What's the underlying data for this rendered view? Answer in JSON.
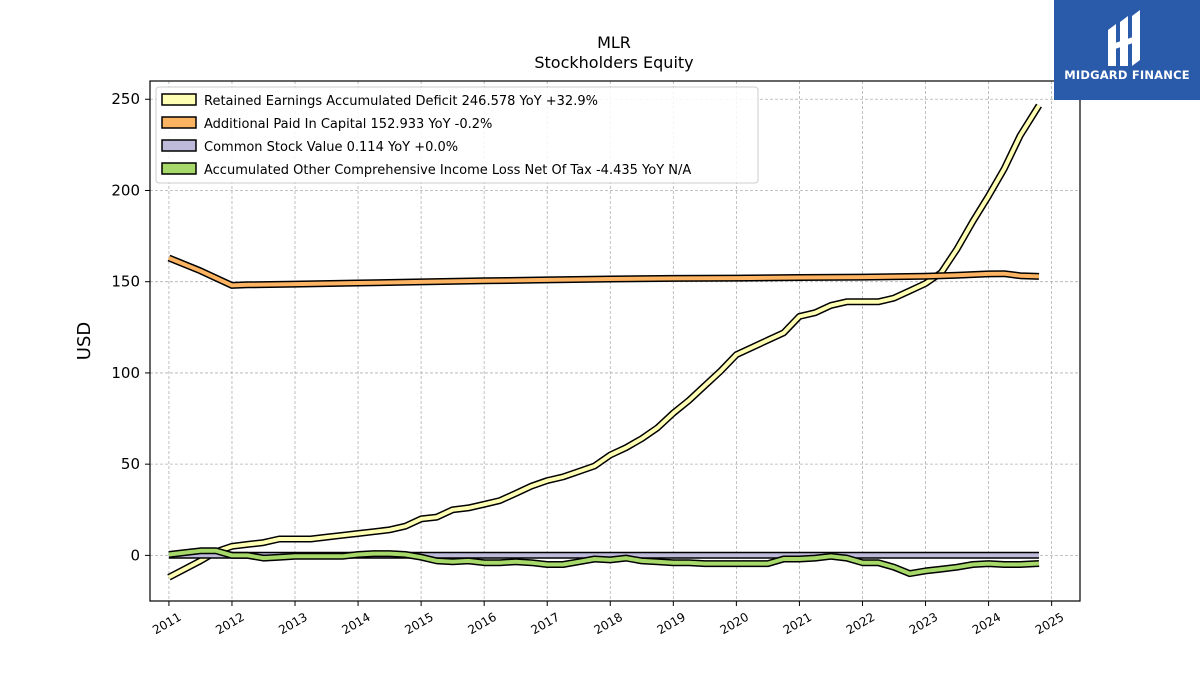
{
  "chart_data": {
    "type": "line",
    "title": "MLR",
    "subtitle": "Stockholders  Equity",
    "ylabel": "USD",
    "xlabel": "",
    "ylim": [
      -25,
      260
    ],
    "xlim": [
      2010.7,
      2025.45
    ],
    "yticks": [
      0,
      50,
      100,
      150,
      200,
      250
    ],
    "xticks": [
      2011,
      2012,
      2013,
      2014,
      2015,
      2016,
      2017,
      2018,
      2019,
      2020,
      2021,
      2022,
      2023,
      2024,
      2025
    ],
    "grid": true,
    "legend_position": "top-left",
    "series": [
      {
        "name": "Retained Earnings Accumulated Deficit",
        "legend": "Retained Earnings Accumulated Deficit  246.578 YoY +32.9%",
        "color": "#ffffb3",
        "x": [
          2011.0,
          2011.5,
          2011.75,
          2012.0,
          2012.25,
          2012.5,
          2012.75,
          2013.0,
          2013.25,
          2013.5,
          2013.75,
          2014.0,
          2014.25,
          2014.5,
          2014.75,
          2015.0,
          2015.25,
          2015.5,
          2015.75,
          2016.0,
          2016.25,
          2016.5,
          2016.75,
          2017.0,
          2017.25,
          2017.5,
          2017.75,
          2018.0,
          2018.25,
          2018.5,
          2018.75,
          2019.0,
          2019.25,
          2019.5,
          2019.75,
          2020.0,
          2020.25,
          2020.5,
          2020.75,
          2021.0,
          2021.25,
          2021.5,
          2021.75,
          2022.0,
          2022.25,
          2022.5,
          2022.75,
          2023.0,
          2023.25,
          2023.5,
          2023.75,
          2024.0,
          2024.25,
          2024.5,
          2024.8
        ],
        "y": [
          -12,
          -3,
          2,
          5,
          6,
          7,
          9,
          9,
          9,
          10,
          11,
          12,
          13,
          14,
          16,
          20,
          21,
          25,
          26,
          28,
          30,
          34,
          38,
          41,
          43,
          46,
          49,
          55,
          59,
          64,
          70,
          78,
          85,
          93,
          101,
          110,
          114,
          118,
          122,
          131,
          133,
          137,
          139,
          139,
          139,
          141,
          145,
          149,
          155,
          168,
          183,
          197,
          212,
          230,
          246.578
        ]
      },
      {
        "name": "Additional Paid In Capital",
        "legend": "Additional Paid In Capital  152.933 YoY -0.2%",
        "color": "#fdb462",
        "x": [
          2011.0,
          2011.5,
          2012.0,
          2012.25,
          2013.0,
          2014.0,
          2015.0,
          2016.0,
          2017.0,
          2018.0,
          2019.0,
          2020.0,
          2021.0,
          2022.0,
          2023.0,
          2023.5,
          2024.0,
          2024.25,
          2024.5,
          2024.8
        ],
        "y": [
          163,
          156,
          148,
          148.3,
          148.7,
          149.3,
          149.9,
          150.5,
          151.0,
          151.5,
          151.8,
          152.0,
          152.3,
          152.5,
          153.0,
          153.5,
          154.3,
          154.4,
          153.3,
          152.933
        ]
      },
      {
        "name": "Common Stock Value",
        "legend": "Common Stock Value  0.114 YoY +0.0%",
        "color": "#bebada",
        "x": [
          2011.0,
          2024.8
        ],
        "y": [
          0.114,
          0.114
        ]
      },
      {
        "name": "Accumulated Other Comprehensive Income Loss Net Of Tax",
        "legend": "Accumulated Other Comprehensive Income Loss Net Of Tax  -4.435 YoY N/A",
        "color": "#a6d96a",
        "x": [
          2011.0,
          2011.25,
          2011.5,
          2011.75,
          2012.0,
          2012.25,
          2012.5,
          2012.75,
          2013.0,
          2013.25,
          2013.5,
          2013.75,
          2014.0,
          2014.25,
          2014.5,
          2014.75,
          2015.0,
          2015.25,
          2015.5,
          2015.75,
          2016.0,
          2016.25,
          2016.5,
          2016.75,
          2017.0,
          2017.25,
          2017.5,
          2017.75,
          2018.0,
          2018.25,
          2018.5,
          2018.75,
          2019.0,
          2019.25,
          2019.5,
          2019.75,
          2020.0,
          2020.25,
          2020.5,
          2020.75,
          2021.0,
          2021.25,
          2021.5,
          2021.75,
          2022.0,
          2022.25,
          2022.5,
          2022.75,
          2023.0,
          2023.25,
          2023.5,
          2023.75,
          2024.0,
          2024.25,
          2024.5,
          2024.8
        ],
        "y": [
          0.5,
          1.5,
          2.5,
          2.5,
          0,
          0,
          -1.5,
          -1,
          -0.5,
          -0.5,
          -0.5,
          -0.5,
          0.5,
          1,
          1,
          0.5,
          -1,
          -3,
          -3.5,
          -3,
          -4,
          -4,
          -3.5,
          -4,
          -5,
          -5,
          -3.5,
          -2,
          -2.5,
          -1.5,
          -3,
          -3.5,
          -4,
          -4,
          -4.5,
          -4.5,
          -4.5,
          -4.5,
          -4.5,
          -2,
          -2,
          -1.5,
          -0.5,
          -1.5,
          -4,
          -4,
          -6.5,
          -10,
          -8.5,
          -7.5,
          -6.5,
          -5,
          -4.5,
          -5,
          -5,
          -4.435
        ]
      }
    ]
  },
  "logo": {
    "text": "MIDGARD FINANCE"
  }
}
